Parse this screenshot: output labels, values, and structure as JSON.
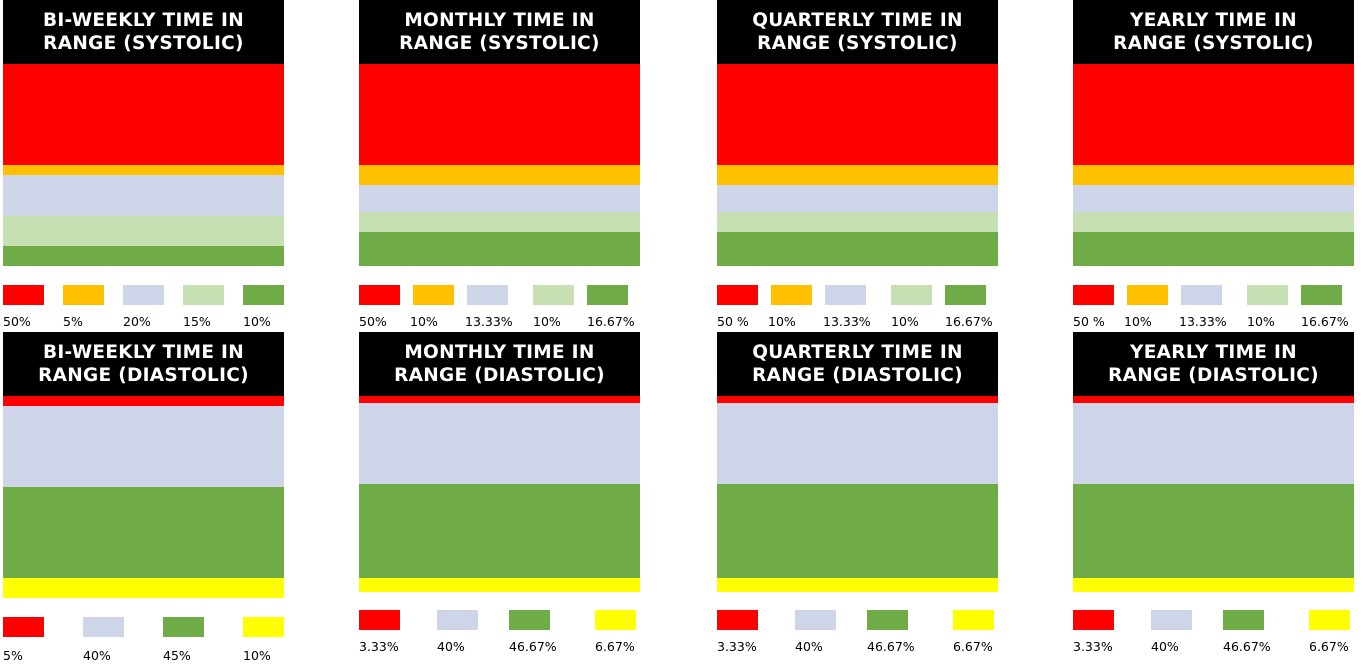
{
  "colors": {
    "red": "#ff0000",
    "orange": "#ffc000",
    "lavender": "#cfd5e8",
    "lightgreen": "#c6e0b4",
    "green": "#6fab47",
    "yellow": "#ffff00"
  },
  "panels": [
    {
      "id": "biweekly-systolic",
      "title_line1": "BI-WEEKLY TIME IN",
      "title_line2": "RANGE (SYSTOLIC)",
      "segments": [
        {
          "color": "red",
          "value": 50
        },
        {
          "color": "orange",
          "value": 5
        },
        {
          "color": "lavender",
          "value": 20
        },
        {
          "color": "lightgreen",
          "value": 15
        },
        {
          "color": "green",
          "value": 10
        }
      ],
      "labels": [
        "50%",
        "5%",
        "20%",
        "15%",
        "10%"
      ]
    },
    {
      "id": "monthly-systolic",
      "title_line1": "MONTHLY TIME IN",
      "title_line2": "RANGE (SYSTOLIC)",
      "segments": [
        {
          "color": "red",
          "value": 50
        },
        {
          "color": "orange",
          "value": 10
        },
        {
          "color": "lavender",
          "value": 13.33
        },
        {
          "color": "lightgreen",
          "value": 10
        },
        {
          "color": "green",
          "value": 16.67
        }
      ],
      "labels": [
        "50%",
        "10%",
        "13.33%",
        "10%",
        "16.67%"
      ]
    },
    {
      "id": "quarterly-systolic",
      "title_line1": "QUARTERLY TIME IN",
      "title_line2": "RANGE (SYSTOLIC)",
      "segments": [
        {
          "color": "red",
          "value": 50
        },
        {
          "color": "orange",
          "value": 10
        },
        {
          "color": "lavender",
          "value": 13.33
        },
        {
          "color": "lightgreen",
          "value": 10
        },
        {
          "color": "green",
          "value": 16.67
        }
      ],
      "labels": [
        "50 %",
        "10%",
        "13.33%",
        "10%",
        "16.67%"
      ]
    },
    {
      "id": "yearly-systolic",
      "title_line1": "YEARLY TIME IN",
      "title_line2": "RANGE (SYSTOLIC)",
      "segments": [
        {
          "color": "red",
          "value": 50
        },
        {
          "color": "orange",
          "value": 10
        },
        {
          "color": "lavender",
          "value": 13.33
        },
        {
          "color": "lightgreen",
          "value": 10
        },
        {
          "color": "green",
          "value": 16.67
        }
      ],
      "labels": [
        "50 %",
        "10%",
        "13.33%",
        "10%",
        "16.67%"
      ]
    },
    {
      "id": "biweekly-diastolic",
      "title_line1": "BI-WEEKLY TIME IN",
      "title_line2": "RANGE (DIASTOLIC)",
      "segments": [
        {
          "color": "red",
          "value": 5
        },
        {
          "color": "lavender",
          "value": 40
        },
        {
          "color": "green",
          "value": 45
        },
        {
          "color": "yellow",
          "value": 10
        }
      ],
      "labels": [
        "5%",
        "40%",
        "45%",
        "10%"
      ]
    },
    {
      "id": "monthly-diastolic",
      "title_line1": "MONTHLY TIME IN",
      "title_line2": "RANGE (DIASTOLIC)",
      "segments": [
        {
          "color": "red",
          "value": 3.33
        },
        {
          "color": "lavender",
          "value": 40
        },
        {
          "color": "green",
          "value": 46.67
        },
        {
          "color": "yellow",
          "value": 6.67
        }
      ],
      "labels": [
        "3.33%",
        "40%",
        "46.67%",
        "6.67%"
      ]
    },
    {
      "id": "quarterly-diastolic",
      "title_line1": "QUARTERLY TIME IN",
      "title_line2": "RANGE (DIASTOLIC)",
      "segments": [
        {
          "color": "red",
          "value": 3.33
        },
        {
          "color": "lavender",
          "value": 40
        },
        {
          "color": "green",
          "value": 46.67
        },
        {
          "color": "yellow",
          "value": 6.67
        }
      ],
      "labels": [
        "3.33%",
        "40%",
        "46.67%",
        "6.67%"
      ]
    },
    {
      "id": "yearly-diastolic",
      "title_line1": "YEARLY TIME IN",
      "title_line2": "RANGE (DIASTOLIC)",
      "segments": [
        {
          "color": "red",
          "value": 3.33
        },
        {
          "color": "lavender",
          "value": 40
        },
        {
          "color": "green",
          "value": 46.67
        },
        {
          "color": "yellow",
          "value": 6.67
        }
      ],
      "labels": [
        "3.33%",
        "40%",
        "46.67%",
        "6.67%"
      ]
    }
  ],
  "chart_data": [
    {
      "type": "bar",
      "title": "BI-WEEKLY TIME IN RANGE (SYSTOLIC)",
      "series": [
        {
          "values": [
            50,
            5,
            20,
            15,
            10
          ]
        }
      ]
    },
    {
      "type": "bar",
      "title": "MONTHLY TIME IN RANGE (SYSTOLIC)",
      "series": [
        {
          "values": [
            50,
            10,
            13.33,
            10,
            16.67
          ]
        }
      ]
    },
    {
      "type": "bar",
      "title": "QUARTERLY TIME IN RANGE (SYSTOLIC)",
      "series": [
        {
          "values": [
            50,
            10,
            13.33,
            10,
            16.67
          ]
        }
      ]
    },
    {
      "type": "bar",
      "title": "YEARLY TIME IN RANGE (SYSTOLIC)",
      "series": [
        {
          "values": [
            50,
            10,
            13.33,
            10,
            16.67
          ]
        }
      ]
    },
    {
      "type": "bar",
      "title": "BI-WEEKLY TIME IN RANGE (DIASTOLIC)",
      "series": [
        {
          "values": [
            5,
            40,
            45,
            10
          ]
        }
      ]
    },
    {
      "type": "bar",
      "title": "MONTHLY TIME IN RANGE (DIASTOLIC)",
      "series": [
        {
          "values": [
            3.33,
            40,
            46.67,
            6.67
          ]
        }
      ]
    },
    {
      "type": "bar",
      "title": "QUARTERLY TIME IN RANGE (DIASTOLIC)",
      "series": [
        {
          "values": [
            3.33,
            40,
            46.67,
            6.67
          ]
        }
      ]
    },
    {
      "type": "bar",
      "title": "YEARLY TIME IN RANGE (DIASTOLIC)",
      "series": [
        {
          "values": [
            3.33,
            40,
            46.67,
            6.67
          ]
        }
      ]
    }
  ]
}
